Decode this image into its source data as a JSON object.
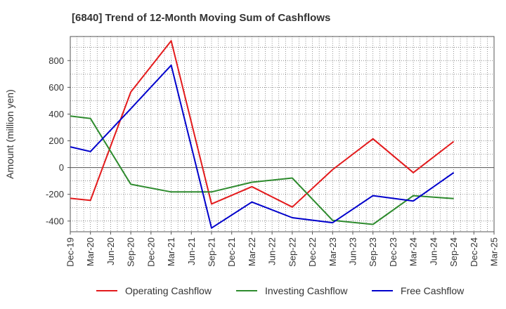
{
  "chart_data": {
    "type": "line",
    "title": "[6840]  Trend of 12-Month Moving Sum of Cashflows",
    "ylabel": "Amount (million yen)",
    "xlabel": "",
    "categories": [
      "Dec-19",
      "Mar-20",
      "Jun-20",
      "Sep-20",
      "Dec-20",
      "Mar-21",
      "Jun-21",
      "Sep-21",
      "Dec-21",
      "Mar-22",
      "Jun-22",
      "Sep-22",
      "Dec-22",
      "Mar-23",
      "Jun-23",
      "Sep-23",
      "Dec-23",
      "Mar-24",
      "Jun-24",
      "Sep-24",
      "Dec-24",
      "Mar-25"
    ],
    "yticks": [
      "800",
      "600",
      "400",
      "200",
      "0",
      "-200",
      "-400"
    ],
    "ylim": [
      -480,
      980
    ],
    "grid": true,
    "legend_position": "bottom",
    "series": [
      {
        "name": "Operating Cashflow",
        "color": "#e31a1c",
        "points": [
          [
            "Dec-19",
            -230
          ],
          [
            "Mar-20",
            -245
          ],
          [
            "Sep-20",
            565
          ],
          [
            "Mar-21",
            948
          ],
          [
            "Sep-21",
            -272
          ],
          [
            "Mar-22",
            -143
          ],
          [
            "Sep-22",
            -295
          ],
          [
            "Mar-23",
            -15
          ],
          [
            "Sep-23",
            215
          ],
          [
            "Mar-24",
            -38
          ],
          [
            "Sep-24",
            195
          ]
        ]
      },
      {
        "name": "Investing Cashflow",
        "color": "#2e8b2e",
        "points": [
          [
            "Dec-19",
            385
          ],
          [
            "Mar-20",
            367
          ],
          [
            "Sep-20",
            -125
          ],
          [
            "Mar-21",
            -182
          ],
          [
            "Sep-21",
            -182
          ],
          [
            "Mar-22",
            -110
          ],
          [
            "Sep-22",
            -78
          ],
          [
            "Mar-23",
            -395
          ],
          [
            "Sep-23",
            -425
          ],
          [
            "Mar-24",
            -210
          ],
          [
            "Sep-24",
            -232
          ]
        ]
      },
      {
        "name": "Free Cashflow",
        "color": "#0000cc",
        "points": [
          [
            "Dec-19",
            155
          ],
          [
            "Mar-20",
            120
          ],
          [
            "Sep-20",
            440
          ],
          [
            "Mar-21",
            765
          ],
          [
            "Sep-21",
            -452
          ],
          [
            "Mar-22",
            -258
          ],
          [
            "Sep-22",
            -375
          ],
          [
            "Mar-23",
            -412
          ],
          [
            "Sep-23",
            -210
          ],
          [
            "Mar-24",
            -250
          ],
          [
            "Sep-24",
            -38
          ]
        ]
      }
    ]
  }
}
